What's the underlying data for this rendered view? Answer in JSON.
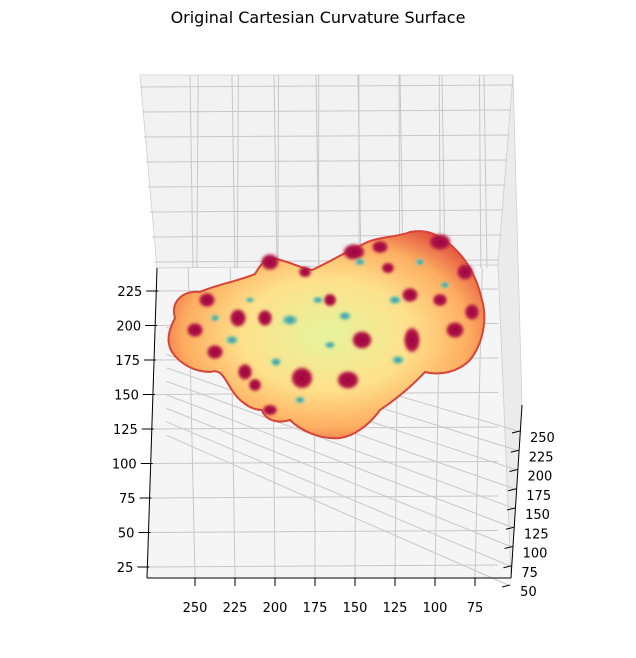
{
  "chart_data": {
    "type": "surface",
    "title": "Original Cartesian Curvature Surface",
    "xlabel": "",
    "ylabel": "",
    "zlabel": "",
    "x_ticks": [
      250,
      225,
      200,
      175,
      150,
      125,
      100,
      75
    ],
    "y_ticks": [
      250,
      225,
      200,
      175,
      150,
      125,
      100,
      75,
      50
    ],
    "z_ticks": [
      225,
      200,
      175,
      150,
      125,
      100,
      75,
      50,
      25
    ],
    "colormap": "Spectral",
    "grid": true,
    "background_panes": "#f2f2f2"
  }
}
